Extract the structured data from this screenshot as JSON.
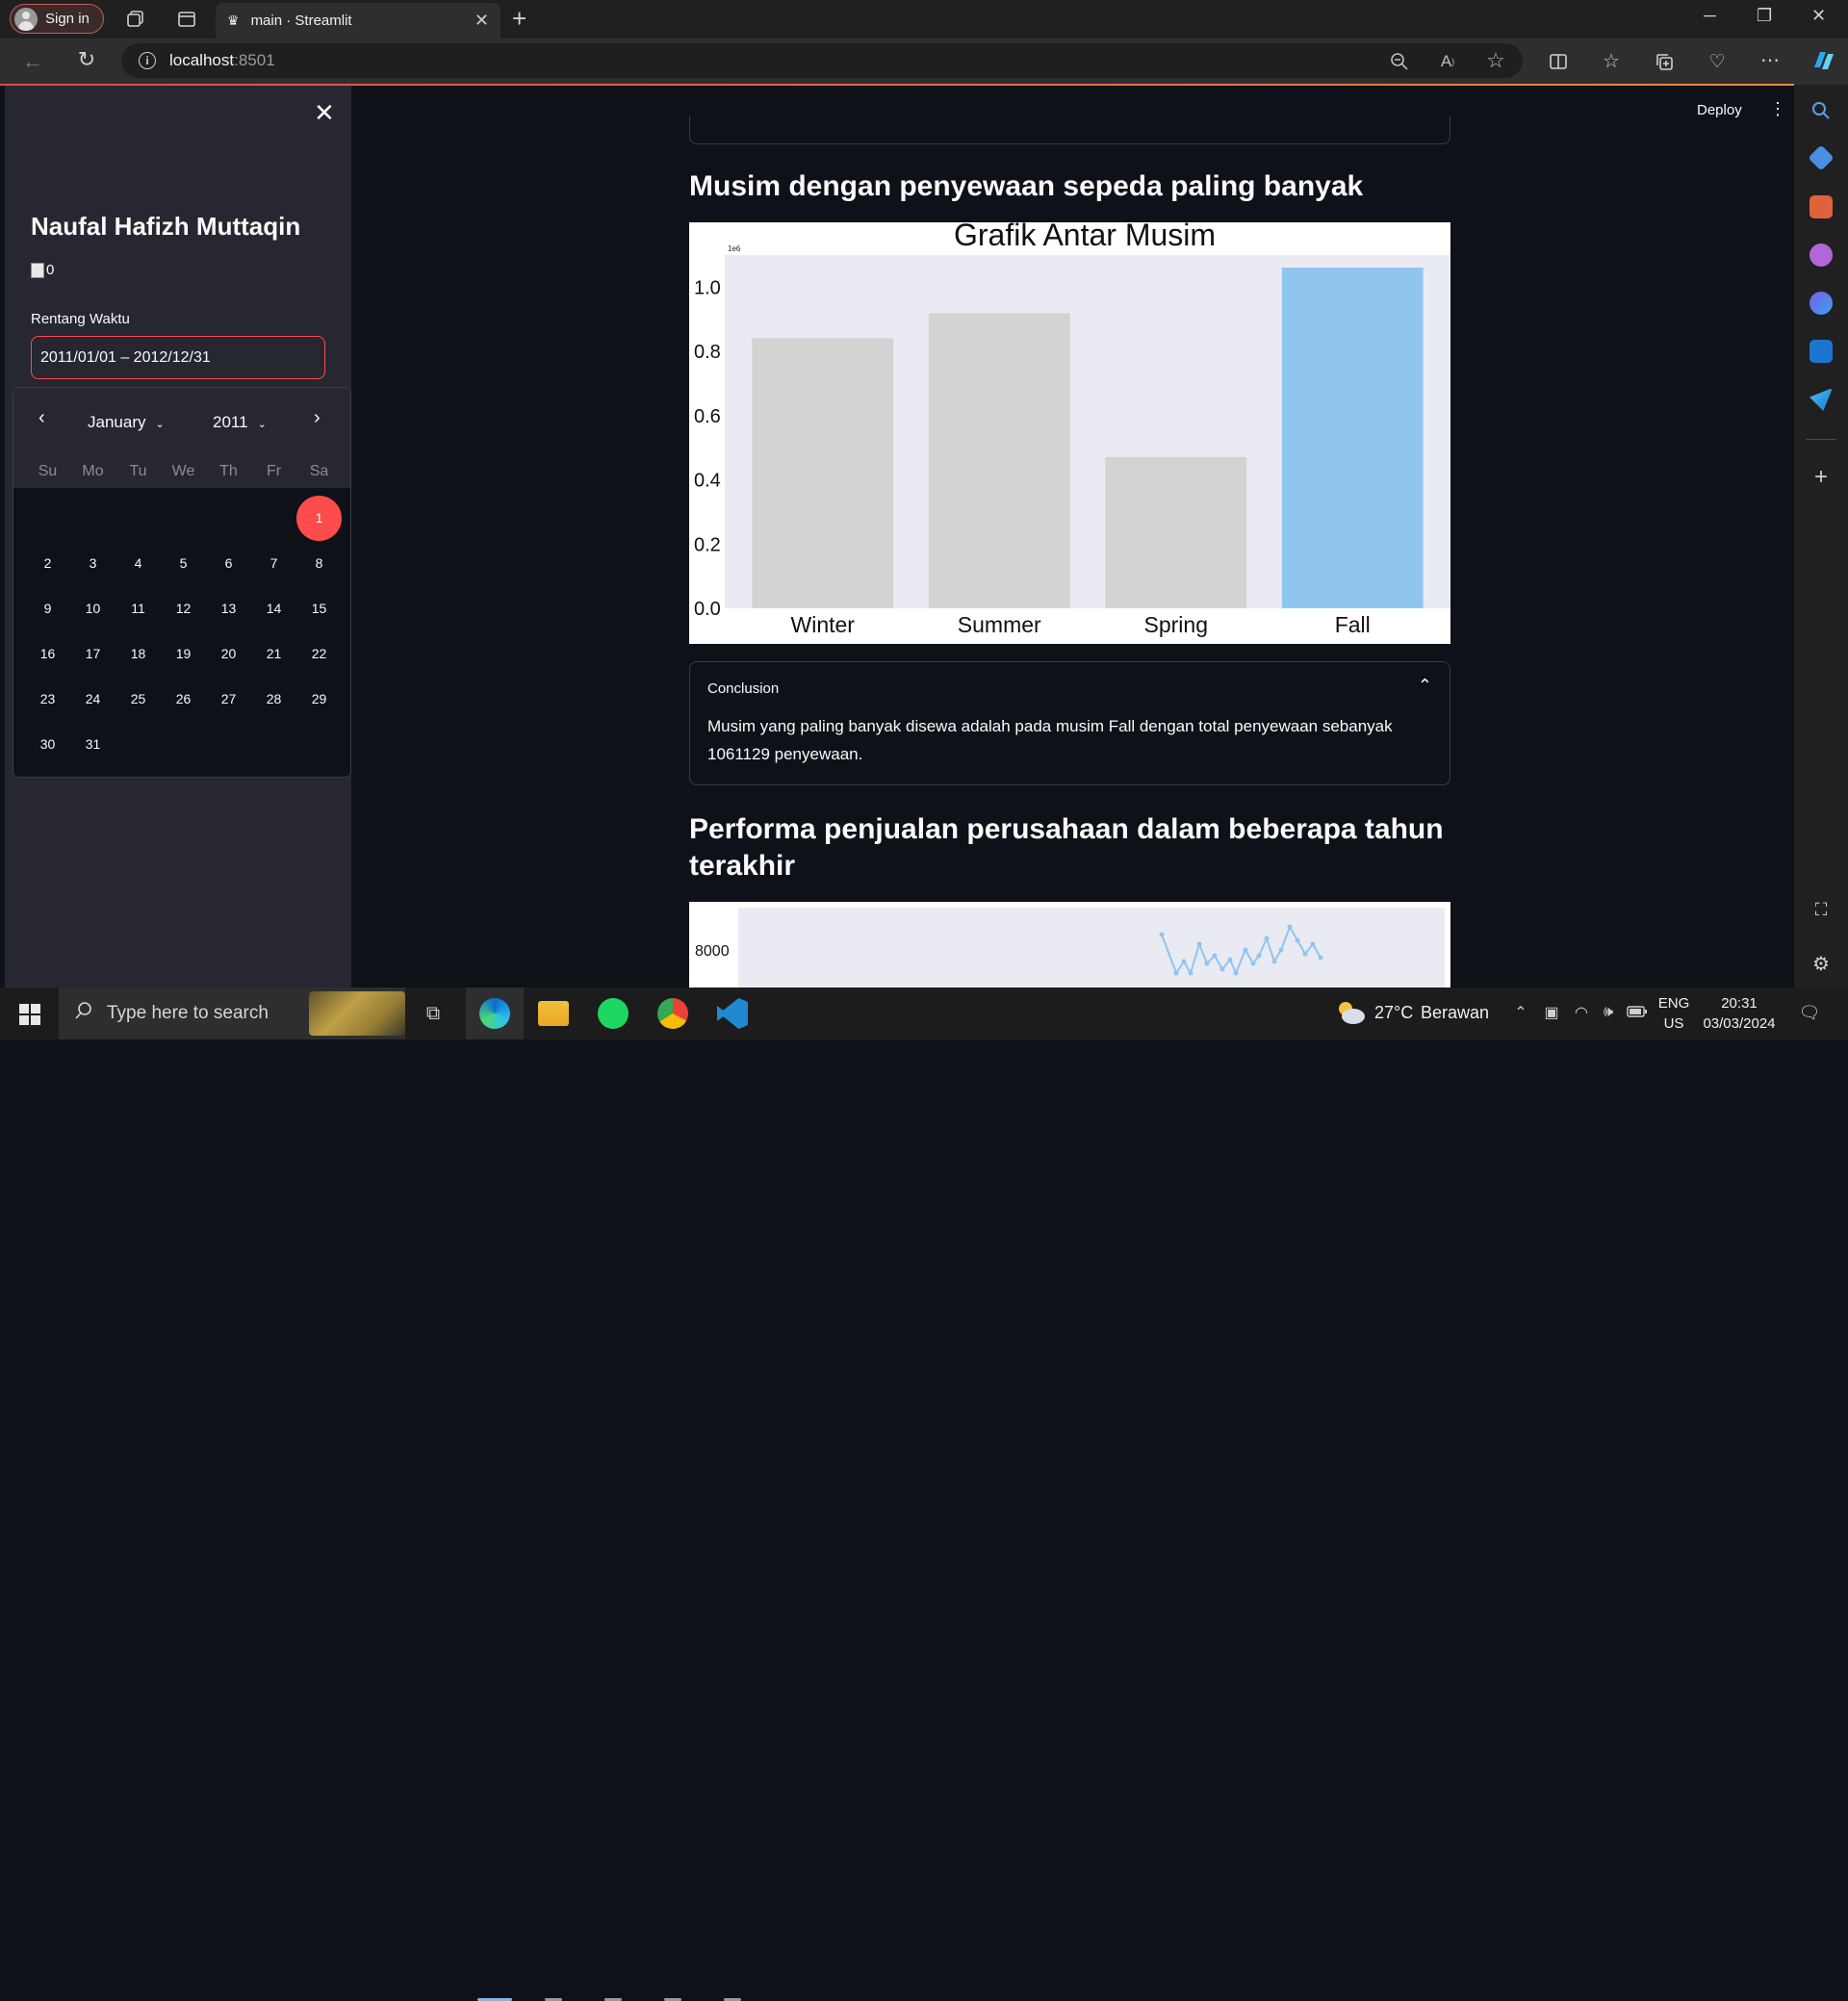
{
  "browser": {
    "signin_label": "Sign in",
    "tab_title": "main · Streamlit",
    "url_host": "localhost",
    "url_port": ":8501"
  },
  "header": {
    "deploy_label": "Deploy"
  },
  "sidebar": {
    "author": "Naufal Hafizh Muttaqin",
    "image_alt": "0",
    "range_label": "Rentang Waktu",
    "date_value": "2011/01/01 – 2012/12/31"
  },
  "calendar": {
    "month": "January",
    "year": "2011",
    "weekdays": [
      "Su",
      "Mo",
      "Tu",
      "We",
      "Th",
      "Fr",
      "Sa"
    ],
    "days": [
      "1",
      "2",
      "3",
      "4",
      "5",
      "6",
      "7",
      "8",
      "9",
      "10",
      "11",
      "12",
      "13",
      "14",
      "15",
      "16",
      "17",
      "18",
      "19",
      "20",
      "21",
      "22",
      "23",
      "24",
      "25",
      "26",
      "27",
      "28",
      "29",
      "30",
      "31"
    ],
    "selected_day": "1"
  },
  "main": {
    "section1_title": "Musim dengan penyewaan sepeda paling banyak",
    "conclusion_title": "Conclusion",
    "conclusion_text": "Musim yang paling banyak disewa adalah pada musim Fall dengan total penyewaan sebanyak 1061129 penyewaan.",
    "section2_title": "Performa penjualan perusahaan dalam beberapa tahun terakhir"
  },
  "chart_data": [
    {
      "type": "bar",
      "title": "Grafik Antar Musim",
      "scale_label": "1e6",
      "categories": [
        "Winter",
        "Summer",
        "Spring",
        "Fall"
      ],
      "values": [
        0.841,
        0.919,
        0.471,
        1.061
      ],
      "highlight_index": 3,
      "colors": {
        "default": "#d3d3d3",
        "highlight": "#90c5f0",
        "plot_bg": "#eaeaf2"
      },
      "ylim": [
        0,
        1.1
      ],
      "yticks": [
        "0.0",
        "0.2",
        "0.4",
        "0.6",
        "0.8",
        "1.0"
      ]
    },
    {
      "type": "line",
      "visible_tick": "8000",
      "colors": {
        "line": "#90c5f0",
        "plot_bg": "#eaeaf2"
      }
    }
  ],
  "taskbar": {
    "search_placeholder": "Type here to search",
    "weather_temp": "27°C",
    "weather_desc": "Berawan",
    "lang": "ENG",
    "region": "US",
    "time": "20:31",
    "date": "03/03/2024"
  }
}
